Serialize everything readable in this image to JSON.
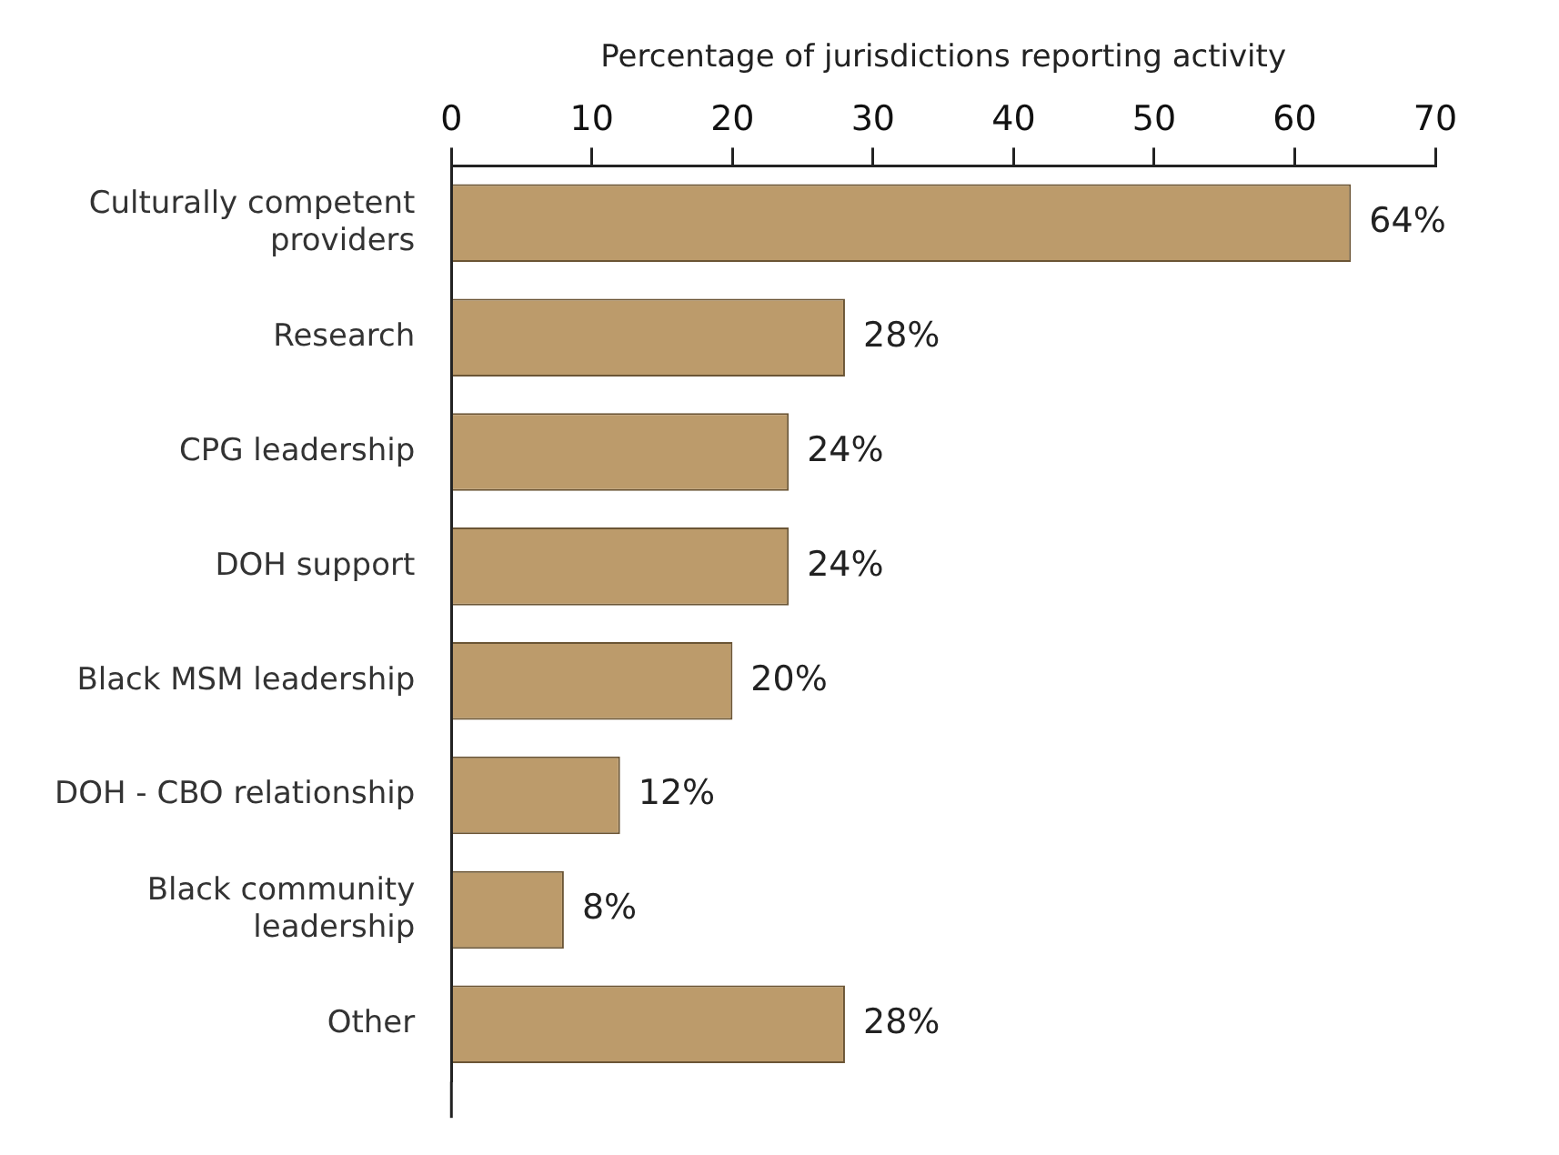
{
  "chart_data": {
    "type": "bar",
    "orientation": "horizontal",
    "xlabel": "Percentage of jurisdictions reporting activity",
    "categories": [
      "Culturally competent providers",
      "Research",
      "CPG leadership",
      "DOH support",
      "Black MSM leadership",
      "DOH - CBO relationship",
      "Black community leadership",
      "Other"
    ],
    "values": [
      64,
      28,
      24,
      24,
      20,
      12,
      8,
      28
    ],
    "value_labels": [
      "64%",
      "28%",
      "24%",
      "24%",
      "20%",
      "12%",
      "8%",
      "28%"
    ],
    "color": "#bc9b6b",
    "xlim": [
      0,
      70
    ],
    "xticks": [
      0,
      10,
      20,
      30,
      40,
      50,
      60,
      70
    ],
    "grid": false,
    "legend": false
  }
}
